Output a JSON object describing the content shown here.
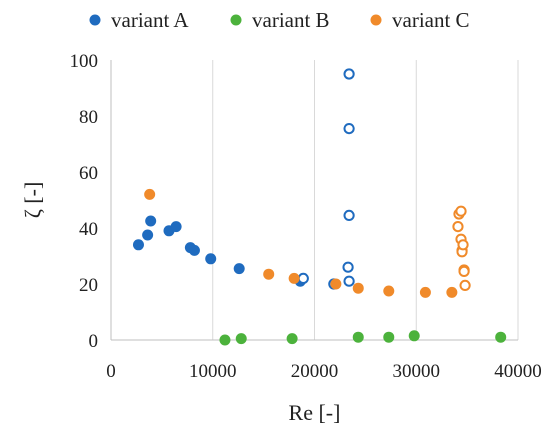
{
  "chart_data": {
    "type": "scatter",
    "title": "",
    "xlabel": "Re [-]",
    "ylabel": "ζ [-]",
    "xlim": [
      0,
      40000
    ],
    "ylim": [
      0,
      100
    ],
    "xticks": [
      0,
      10000,
      20000,
      30000,
      40000
    ],
    "yticks": [
      0,
      20,
      40,
      60,
      80,
      100
    ],
    "grid": "vertical",
    "legend_position": "top",
    "series": [
      {
        "name": "variant A",
        "color": "#1f6bbf",
        "points": [
          {
            "x": 2700,
            "y": 34,
            "filled": true
          },
          {
            "x": 3600,
            "y": 37.5,
            "filled": true
          },
          {
            "x": 3900,
            "y": 42.5,
            "filled": true
          },
          {
            "x": 5700,
            "y": 39,
            "filled": true
          },
          {
            "x": 6400,
            "y": 40.5,
            "filled": true
          },
          {
            "x": 7800,
            "y": 33,
            "filled": true
          },
          {
            "x": 8200,
            "y": 32,
            "filled": true
          },
          {
            "x": 9800,
            "y": 29,
            "filled": true
          },
          {
            "x": 12600,
            "y": 25.5,
            "filled": true
          },
          {
            "x": 18600,
            "y": 21,
            "filled": true
          },
          {
            "x": 18900,
            "y": 22,
            "filled": false
          },
          {
            "x": 21900,
            "y": 20,
            "filled": false
          },
          {
            "x": 23300,
            "y": 26,
            "filled": false
          },
          {
            "x": 23400,
            "y": 21,
            "filled": false
          },
          {
            "x": 23400,
            "y": 44.5,
            "filled": false
          },
          {
            "x": 23400,
            "y": 75.5,
            "filled": false
          },
          {
            "x": 23400,
            "y": 95,
            "filled": false
          }
        ]
      },
      {
        "name": "variant B",
        "color": "#4cb23c",
        "points": [
          {
            "x": 11200,
            "y": 0,
            "filled": true
          },
          {
            "x": 12800,
            "y": 0.5,
            "filled": true
          },
          {
            "x": 17800,
            "y": 0.5,
            "filled": true
          },
          {
            "x": 24300,
            "y": 1,
            "filled": true
          },
          {
            "x": 27300,
            "y": 1,
            "filled": true
          },
          {
            "x": 29800,
            "y": 1.5,
            "filled": true
          },
          {
            "x": 38300,
            "y": 1,
            "filled": true
          }
        ]
      },
      {
        "name": "variant C",
        "color": "#f08a2a",
        "points": [
          {
            "x": 3800,
            "y": 52,
            "filled": true
          },
          {
            "x": 15500,
            "y": 23.5,
            "filled": true
          },
          {
            "x": 18000,
            "y": 22,
            "filled": true
          },
          {
            "x": 22100,
            "y": 20,
            "filled": true
          },
          {
            "x": 24300,
            "y": 18.5,
            "filled": true
          },
          {
            "x": 27300,
            "y": 17.5,
            "filled": true
          },
          {
            "x": 30900,
            "y": 17,
            "filled": true
          },
          {
            "x": 33500,
            "y": 17,
            "filled": true
          },
          {
            "x": 34100,
            "y": 40.5,
            "filled": false
          },
          {
            "x": 34200,
            "y": 45,
            "filled": false
          },
          {
            "x": 34400,
            "y": 46,
            "filled": false
          },
          {
            "x": 34400,
            "y": 36,
            "filled": false
          },
          {
            "x": 34500,
            "y": 32,
            "filled": false
          },
          {
            "x": 34500,
            "y": 31.5,
            "filled": false
          },
          {
            "x": 34600,
            "y": 34,
            "filled": false
          },
          {
            "x": 34700,
            "y": 25,
            "filled": false
          },
          {
            "x": 34700,
            "y": 24.5,
            "filled": false
          },
          {
            "x": 34800,
            "y": 19.5,
            "filled": false
          }
        ]
      }
    ]
  }
}
